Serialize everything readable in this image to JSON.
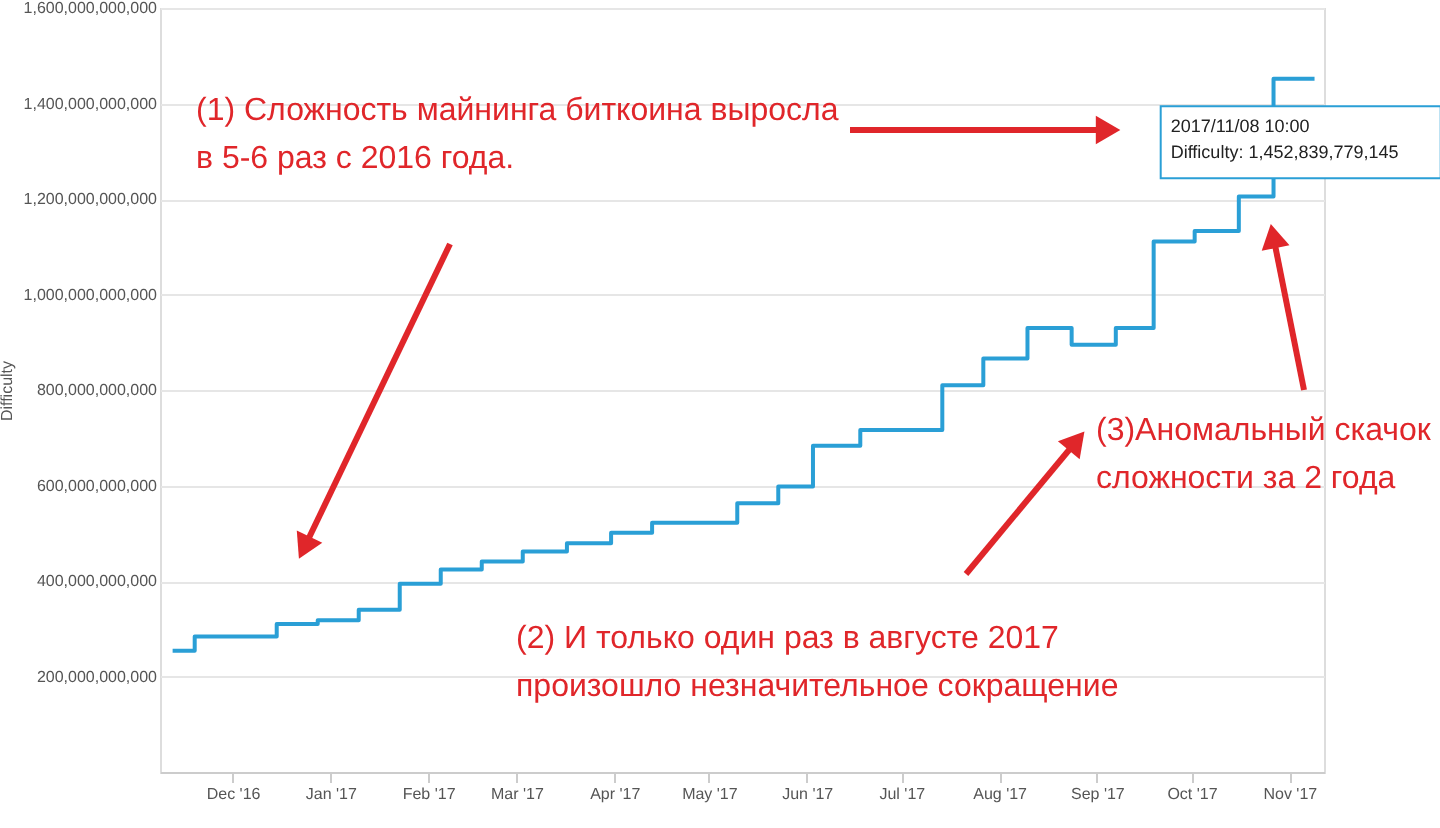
{
  "chart_data": {
    "type": "step",
    "ylabel": "Difficulty",
    "x": [
      "2016-11-12",
      "2016-11-19",
      "2016-12-15",
      "2016-12-28",
      "2017-01-10",
      "2017-01-23",
      "2017-02-05",
      "2017-02-18",
      "2017-03-03",
      "2017-03-17",
      "2017-03-31",
      "2017-04-13",
      "2017-05-10",
      "2017-05-23",
      "2017-06-03",
      "2017-06-18",
      "2017-07-14",
      "2017-07-27",
      "2017-08-10",
      "2017-08-24",
      "2017-09-07",
      "2017-09-19",
      "2017-10-02",
      "2017-10-16",
      "2017-10-27",
      "2017-11-09"
    ],
    "series": [
      {
        "color": "#2a9fd6",
        "values": [
          254000000000,
          284000000000,
          310000000000,
          318000000000,
          340000000000,
          394000000000,
          424000000000,
          441000000000,
          462000000000,
          479000000000,
          501000000000,
          522000000000,
          563000000000,
          598000000000,
          683000000000,
          716000000000,
          810000000000,
          866000000000,
          930000000000,
          895000000000,
          930000000000,
          1111000000000,
          1133000000000,
          1205000000000,
          1452000000000,
          1452000000000
        ]
      }
    ],
    "xlim": [
      "2016-11-08",
      "2017-11-12"
    ],
    "xticks": [
      {
        "value": "2016-12-01",
        "label": "Dec '16"
      },
      {
        "value": "2017-01-01",
        "label": "Jan '17"
      },
      {
        "value": "2017-02-01",
        "label": "Feb '17"
      },
      {
        "value": "2017-03-01",
        "label": "Mar '17"
      },
      {
        "value": "2017-04-01",
        "label": "Apr '17"
      },
      {
        "value": "2017-05-01",
        "label": "May '17"
      },
      {
        "value": "2017-06-01",
        "label": "Jun '17"
      },
      {
        "value": "2017-07-01",
        "label": "Jul '17"
      },
      {
        "value": "2017-08-01",
        "label": "Aug '17"
      },
      {
        "value": "2017-09-01",
        "label": "Sep '17"
      },
      {
        "value": "2017-10-01",
        "label": "Oct '17"
      },
      {
        "value": "2017-11-01",
        "label": "Nov '17"
      }
    ],
    "ylim": [
      0,
      1600000000000
    ],
    "yticks": [
      {
        "value": 200000000000,
        "label": "200,000,000,000"
      },
      {
        "value": 400000000000,
        "label": "400,000,000,000"
      },
      {
        "value": 600000000000,
        "label": "600,000,000,000"
      },
      {
        "value": 800000000000,
        "label": "800,000,000,000"
      },
      {
        "value": 1000000000000,
        "label": "1,000,000,000,000"
      },
      {
        "value": 1200000000000,
        "label": "1,200,000,000,000"
      },
      {
        "value": 1400000000000,
        "label": "1,400,000,000,000"
      },
      {
        "value": 1600000000000,
        "label": "1,600,000,000,000"
      }
    ],
    "grid": "y",
    "marker": "none",
    "annotations": [
      "(1) Сложность майнинга биткоина выросла\nв 5-6 раз с 2016 года.",
      "(2) И только один раз в августе 2017\nпроизошло незначительное сокращение",
      "(3)Аномальный скачок\nсложности за 2 года",
      {
        "text": "2017/11/08 10:00\nDifficulty: 1,452,839,779,145",
        "x": "2017-11-08T10:00",
        "y": 1452839779145
      }
    ]
  }
}
